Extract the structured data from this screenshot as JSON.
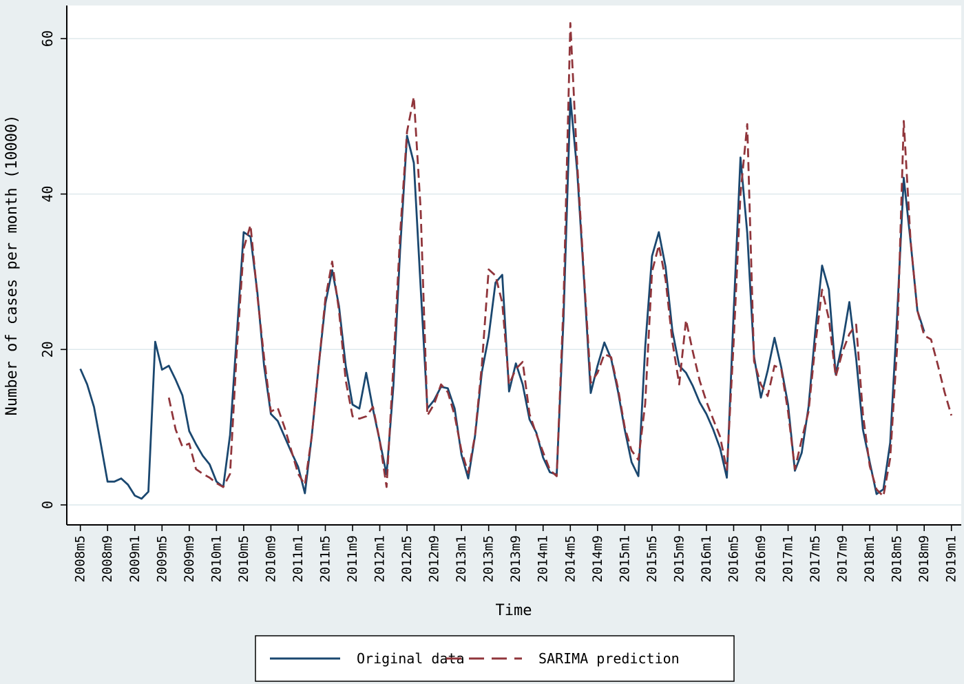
{
  "figure": {
    "y_axis_title": "Number of cases per month (10000)",
    "x_axis_title": "Time",
    "legend": {
      "original_label": "Original data",
      "sarima_label": "SARIMA prediction"
    }
  },
  "chart_data": {
    "type": "line",
    "title": "",
    "xlabel": "Time",
    "ylabel": "Number of cases per month (10000)",
    "ylim": [
      0,
      63
    ],
    "y_ticks": [
      0,
      20,
      40,
      60
    ],
    "x_ticks": [
      "2008m5",
      "2008m9",
      "2009m1",
      "2009m5",
      "2009m9",
      "2010m1",
      "2010m5",
      "2010m9",
      "2011m1",
      "2011m5",
      "2011m9",
      "2012m1",
      "2012m5",
      "2012m9",
      "2013m1",
      "2013m5",
      "2013m9",
      "2014m1",
      "2014m5",
      "2014m9",
      "2015m1",
      "2015m5",
      "2015m9",
      "2016m1",
      "2016m5",
      "2016m9",
      "2017m1",
      "2017m5",
      "2017m9",
      "2018m1",
      "2018m5",
      "2018m9",
      "2019m1"
    ],
    "x_tick_step_months": 4,
    "grid": true,
    "legend_position": "bottom",
    "colors": {
      "original": "#1a476f",
      "sarima": "#90353b"
    },
    "series": [
      {
        "name": "Original data",
        "key": "original",
        "style": "solid",
        "frequency": "monthly",
        "start": "2008m5",
        "start_index": 0,
        "values": [
          17.5,
          15.5,
          12.6,
          7.9,
          3.0,
          3.0,
          3.4,
          2.6,
          1.2,
          0.8,
          1.7,
          21.0,
          17.4,
          17.9,
          16.1,
          14.1,
          9.5,
          7.8,
          6.3,
          5.2,
          3.0,
          2.3,
          9.0,
          22.0,
          35.1,
          34.5,
          27.4,
          17.9,
          11.7,
          10.8,
          8.8,
          6.8,
          4.9,
          1.5,
          8.8,
          17.7,
          25.9,
          30.2,
          25.6,
          17.9,
          12.9,
          12.4,
          17.0,
          12.3,
          8.2,
          3.9,
          15.3,
          33.0,
          47.5,
          44.0,
          28.0,
          12.4,
          13.5,
          15.2,
          15.0,
          12.4,
          6.5,
          3.4,
          8.9,
          17.1,
          21.7,
          28.6,
          29.6,
          14.6,
          18.2,
          15.5,
          11.0,
          9.3,
          6.1,
          4.2,
          3.9,
          24.0,
          52.3,
          43.0,
          29.2,
          14.4,
          17.9,
          20.9,
          18.8,
          14.6,
          9.7,
          5.5,
          3.7,
          20.3,
          32.0,
          35.1,
          30.6,
          22.4,
          17.9,
          17.0,
          15.3,
          13.2,
          11.7,
          9.7,
          7.3,
          3.5,
          24.8,
          44.7,
          35.0,
          19.1,
          13.8,
          17.3,
          21.5,
          17.7,
          12.9,
          4.4,
          6.7,
          12.6,
          22.4,
          30.8,
          27.7,
          16.8,
          20.9,
          26.1,
          18.8,
          9.7,
          5.5,
          1.4,
          2.0,
          8.0,
          24.0,
          42.1,
          33.9,
          25.0,
          22.3
        ]
      },
      {
        "name": "SARIMA prediction",
        "key": "sarima",
        "style": "dashed",
        "frequency": "monthly",
        "start": "2009m6",
        "start_index": 13,
        "values": [
          13.8,
          9.7,
          7.5,
          7.9,
          4.6,
          4.0,
          3.5,
          2.8,
          2.3,
          4.0,
          20.0,
          33.0,
          36.0,
          27.0,
          19.0,
          12.0,
          12.5,
          10.0,
          7.0,
          4.0,
          2.6,
          8.8,
          17.7,
          26.5,
          31.3,
          25.0,
          16.0,
          11.4,
          11.1,
          11.4,
          12.6,
          8.2,
          2.3,
          17.9,
          35.0,
          48.0,
          52.5,
          38.0,
          11.5,
          13.0,
          15.5,
          14.5,
          11.5,
          7.0,
          4.1,
          9.0,
          18.0,
          30.3,
          29.5,
          26.0,
          15.5,
          17.5,
          18.4,
          11.7,
          9.1,
          6.8,
          4.5,
          3.7,
          26.0,
          62.0,
          44.0,
          29.7,
          15.7,
          17.0,
          19.4,
          19.0,
          15.0,
          10.0,
          7.0,
          5.8,
          13.0,
          30.0,
          33.4,
          29.0,
          21.0,
          15.5,
          23.8,
          19.7,
          16.0,
          13.3,
          11.0,
          8.8,
          4.5,
          21.0,
          40.0,
          49.0,
          18.5,
          15.5,
          14.0,
          17.9,
          17.5,
          12.0,
          4.6,
          8.4,
          12.0,
          20.6,
          27.7,
          23.9,
          16.5,
          19.7,
          22.0,
          23.2,
          11.7,
          5.0,
          2.0,
          1.1,
          6.0,
          20.0,
          49.4,
          34.0,
          25.0,
          21.8,
          21.3,
          18.0,
          14.5,
          11.5
        ]
      }
    ]
  }
}
